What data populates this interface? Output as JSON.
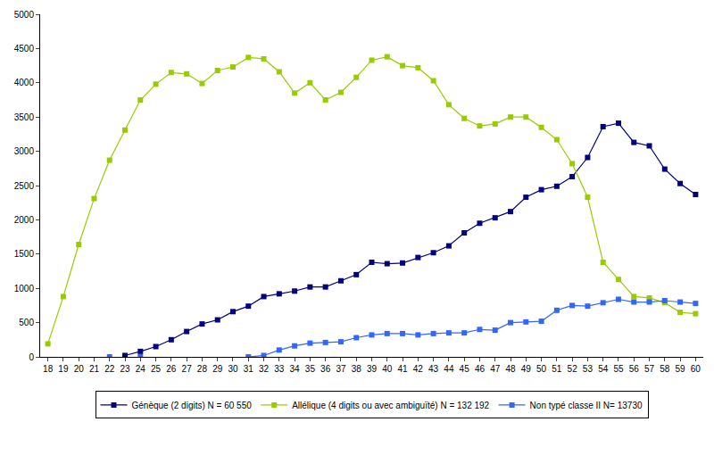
{
  "chart_data": {
    "type": "line",
    "categories": [
      "18",
      "19",
      "20",
      "21",
      "22",
      "23",
      "24",
      "25",
      "26",
      "27",
      "28",
      "29",
      "30",
      "31",
      "32",
      "33",
      "34",
      "35",
      "36",
      "37",
      "38",
      "39",
      "40",
      "41",
      "42",
      "43",
      "44",
      "45",
      "46",
      "47",
      "48",
      "49",
      "50",
      "51",
      "52",
      "53",
      "54",
      "55",
      "56",
      "57",
      "58",
      "59",
      "60"
    ],
    "series": [
      {
        "name": "Génèque (2 digits) N = 60 550",
        "color": "#000080",
        "marker": "square",
        "values": [
          null,
          null,
          null,
          null,
          null,
          20,
          80,
          150,
          250,
          370,
          480,
          540,
          660,
          740,
          880,
          920,
          960,
          1020,
          1020,
          1110,
          1200,
          1380,
          1360,
          1370,
          1450,
          1520,
          1620,
          1810,
          1950,
          2030,
          2120,
          2330,
          2440,
          2490,
          2630,
          2910,
          3360,
          3410,
          3130,
          3080,
          2740,
          2530,
          2370
        ]
      },
      {
        "name": "Allélique (4 digits ou avec ambiguïté) N = 132 192",
        "color": "#99cc00",
        "marker": "square",
        "values": [
          190,
          880,
          1640,
          2310,
          2870,
          3310,
          3750,
          3980,
          4150,
          4130,
          3990,
          4180,
          4230,
          4370,
          4350,
          4160,
          3850,
          4000,
          3750,
          3860,
          4080,
          4330,
          4380,
          4250,
          4220,
          4030,
          3680,
          3480,
          3370,
          3400,
          3500,
          3500,
          3350,
          3170,
          2820,
          2330,
          1380,
          1130,
          880,
          860,
          790,
          650,
          630
        ]
      },
      {
        "name": "Non typé classe II N= 13730",
        "color": "#3366ff",
        "marker": "square",
        "values": [
          null,
          null,
          null,
          null,
          0,
          null,
          0,
          null,
          null,
          null,
          null,
          null,
          null,
          0,
          20,
          100,
          160,
          200,
          210,
          220,
          280,
          320,
          340,
          340,
          320,
          340,
          350,
          350,
          400,
          390,
          500,
          510,
          520,
          680,
          750,
          740,
          790,
          840,
          800,
          800,
          820,
          800,
          780
        ]
      }
    ],
    "ylim": [
      0,
      5000
    ],
    "yticks": [
      0,
      500,
      1000,
      1500,
      2000,
      2500,
      3000,
      3500,
      4000,
      4500,
      5000
    ],
    "grid": false,
    "legend": "bottom"
  }
}
